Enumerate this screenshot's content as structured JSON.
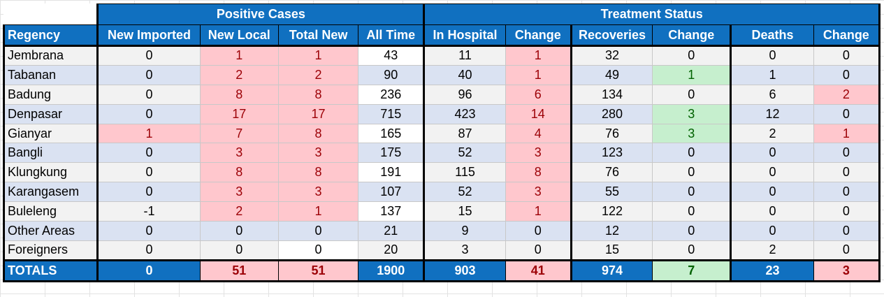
{
  "header": {
    "group_positive": "Positive Cases",
    "group_treatment": "Treatment Status",
    "columns": [
      "Regency",
      "New Imported",
      "New Local",
      "Total New",
      "All Time",
      "In Hospital",
      "Change",
      "Recoveries",
      "Change",
      "Deaths",
      "Change"
    ]
  },
  "rows": [
    {
      "regency": "Jembrana",
      "cells": [
        "0",
        "1",
        "1",
        "43",
        "11",
        "1",
        "32",
        "0",
        "0",
        "0"
      ]
    },
    {
      "regency": "Tabanan",
      "cells": [
        "0",
        "2",
        "2",
        "90",
        "40",
        "1",
        "49",
        "1",
        "1",
        "0"
      ]
    },
    {
      "regency": "Badung",
      "cells": [
        "0",
        "8",
        "8",
        "236",
        "96",
        "6",
        "134",
        "0",
        "6",
        "2"
      ]
    },
    {
      "regency": "Denpasar",
      "cells": [
        "0",
        "17",
        "17",
        "715",
        "423",
        "14",
        "280",
        "3",
        "12",
        "0"
      ]
    },
    {
      "regency": "Gianyar",
      "cells": [
        "1",
        "7",
        "8",
        "165",
        "87",
        "4",
        "76",
        "3",
        "2",
        "1"
      ]
    },
    {
      "regency": "Bangli",
      "cells": [
        "0",
        "3",
        "3",
        "175",
        "52",
        "3",
        "123",
        "0",
        "0",
        "0"
      ]
    },
    {
      "regency": "Klungkung",
      "cells": [
        "0",
        "8",
        "8",
        "191",
        "115",
        "8",
        "76",
        "0",
        "0",
        "0"
      ]
    },
    {
      "regency": "Karangasem",
      "cells": [
        "0",
        "3",
        "3",
        "107",
        "52",
        "3",
        "55",
        "0",
        "0",
        "0"
      ]
    },
    {
      "regency": "Buleleng",
      "cells": [
        "-1",
        "2",
        "1",
        "137",
        "15",
        "1",
        "122",
        "0",
        "0",
        "0"
      ]
    },
    {
      "regency": "Other Areas",
      "cells": [
        "0",
        "0",
        "0",
        "21",
        "9",
        "0",
        "12",
        "0",
        "0",
        "0"
      ]
    },
    {
      "regency": "Foreigners",
      "cells": [
        "0",
        "0",
        "0",
        "20",
        "3",
        "0",
        "15",
        "0",
        "2",
        "0"
      ]
    }
  ],
  "totals": {
    "label": "TOTALS",
    "cells": [
      "0",
      "51",
      "51",
      "1900",
      "903",
      "41",
      "974",
      "7",
      "23",
      "3"
    ]
  },
  "colors": {
    "header_blue": "#1070c0",
    "pink_fill": "#ffc7cd",
    "pink_text": "#9c0006",
    "green_fill": "#c6efce",
    "green_text": "#006100",
    "row_gray": "#f2f2f2",
    "row_blue": "#dae2f2"
  }
}
